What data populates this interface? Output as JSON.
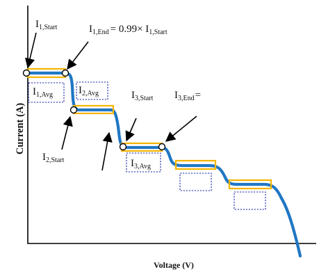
{
  "figure": {
    "xlabel": "Voltage (V)",
    "ylabel": "Current (A)",
    "labels": {
      "i1_start": {
        "base": "I",
        "sub": "1,Start"
      },
      "i1_end": {
        "base": "I",
        "sub": "1,End",
        "suffix": "= 0.99× I",
        "suffix_sub": "1,Start"
      },
      "i1_avg": {
        "base": "I",
        "sub": "1,Avg"
      },
      "i2_avg": {
        "base": "I",
        "sub": "2,Avg"
      },
      "i2_start": {
        "base": "I",
        "sub": "2,Start"
      },
      "i3_start": {
        "base": "I",
        "sub": "3,Start"
      },
      "i3_end": {
        "base": "I",
        "sub": "3,End",
        "suffix": "="
      },
      "i3_avg": {
        "base": "I",
        "sub": "3,Avg"
      }
    },
    "colors": {
      "curve": "#1f77c4",
      "plateau_box": "#f5b400",
      "avg_box": "#1a2aa8",
      "axis": "#000000",
      "arrow": "#000000"
    }
  }
}
